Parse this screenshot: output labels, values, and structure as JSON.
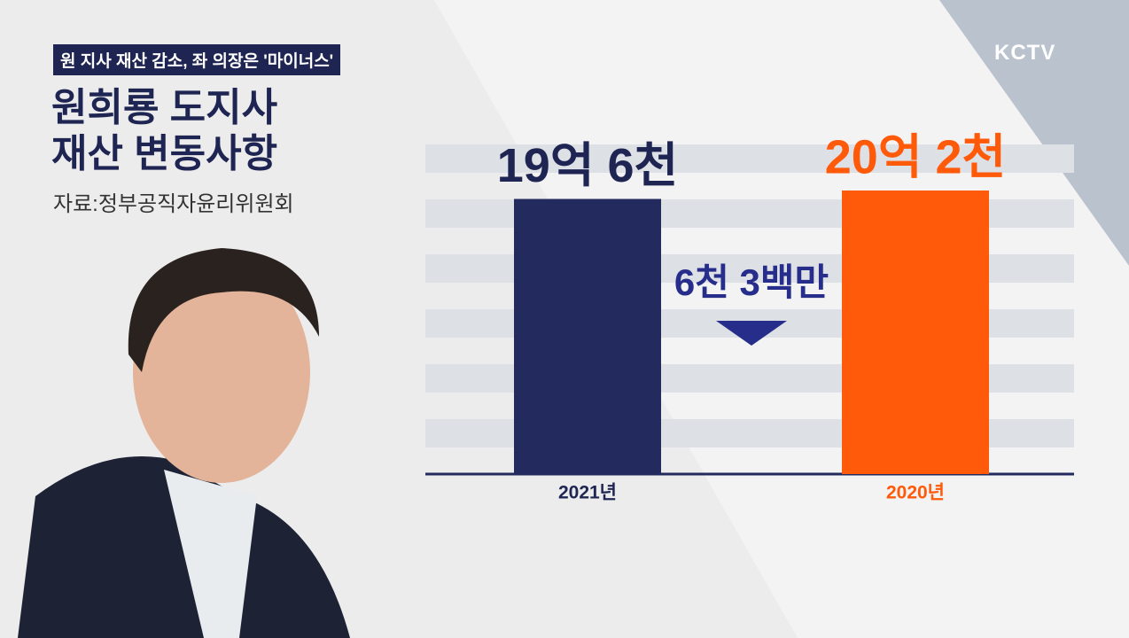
{
  "header": {
    "tag": "원 지사 재산 감소, 좌 의장은 '마이너스'",
    "title_lines": [
      "원희룡 도지사",
      "재산 변동사항"
    ],
    "source": "자료:정부공직자윤리위원회",
    "logo": "KCTV"
  },
  "chart_data": {
    "type": "bar",
    "categories": [
      "2021년",
      "2020년"
    ],
    "values": [
      19.6,
      20.2
    ],
    "value_labels": [
      "19억 6천",
      "20억 2천"
    ],
    "colors": [
      "#232a5e",
      "#ff5a0a"
    ],
    "annotation": "6천 3백만"
  }
}
